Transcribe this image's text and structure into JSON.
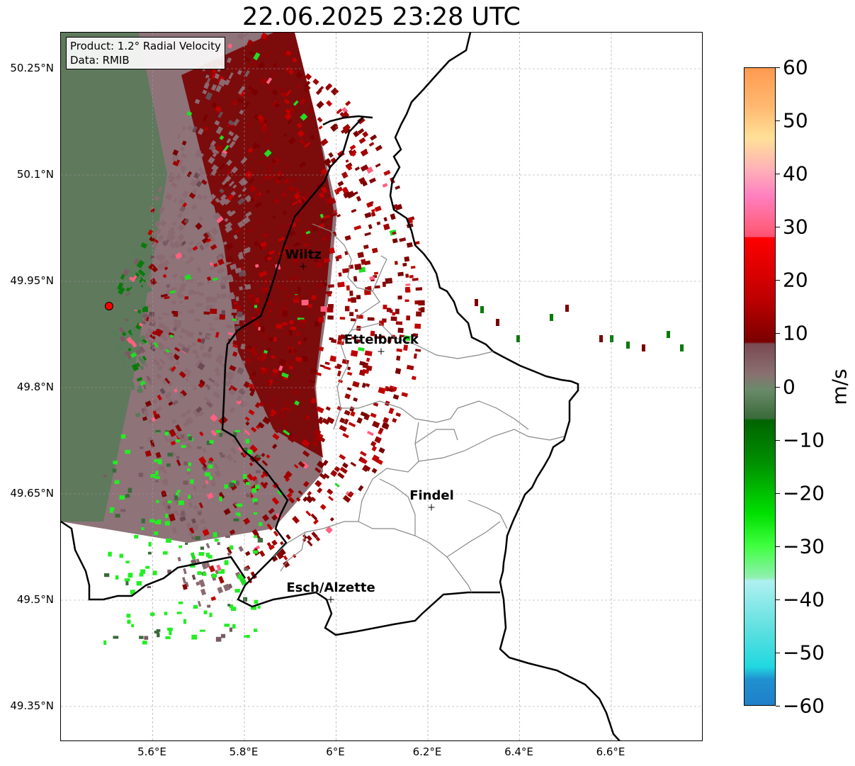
{
  "title": "22.06.2025 23:28 UTC",
  "info": {
    "product": "Product: 1.2° Radial Velocity",
    "data": "Data: RMIB"
  },
  "map": {
    "lon_range": [
      5.4,
      6.8
    ],
    "lat_range": [
      49.3,
      50.3
    ],
    "lat_ticks": [
      {
        "value": 50.25,
        "label": "50.25°N"
      },
      {
        "value": 50.1,
        "label": "50.1°N"
      },
      {
        "value": 49.95,
        "label": "49.95°N"
      },
      {
        "value": 49.8,
        "label": "49.8°N"
      },
      {
        "value": 49.65,
        "label": "49.65°N"
      },
      {
        "value": 49.5,
        "label": "49.5°N"
      },
      {
        "value": 49.35,
        "label": "49.35°N"
      }
    ],
    "lon_ticks": [
      {
        "value": 5.6,
        "label": "5.6°E"
      },
      {
        "value": 5.8,
        "label": "5.8°E"
      },
      {
        "value": 6.0,
        "label": "6°E"
      },
      {
        "value": 6.2,
        "label": "6.2°E"
      },
      {
        "value": 6.4,
        "label": "6.4°E"
      },
      {
        "value": 6.6,
        "label": "6.6°E"
      }
    ],
    "radar_site": {
      "lon": 5.505,
      "lat": 49.915
    },
    "cities": [
      {
        "name": "Wiltz",
        "lon": 5.93,
        "lat": 49.97
      },
      {
        "name": "Ettelbruck",
        "lon": 6.1,
        "lat": 49.85
      },
      {
        "name": "Findel",
        "lon": 6.21,
        "lat": 49.63
      },
      {
        "name": "Esch/Alzette",
        "lon": 5.99,
        "lat": 49.5
      }
    ]
  },
  "colorbar": {
    "unit": "m/s",
    "min": -60,
    "max": 60,
    "ticks": [
      {
        "value": 60,
        "label": "60"
      },
      {
        "value": 50,
        "label": "50"
      },
      {
        "value": 40,
        "label": "40"
      },
      {
        "value": 30,
        "label": "30"
      },
      {
        "value": 20,
        "label": "20"
      },
      {
        "value": 10,
        "label": "10"
      },
      {
        "value": 0,
        "label": "0"
      },
      {
        "value": -10,
        "label": "−10"
      },
      {
        "value": -20,
        "label": "−20"
      },
      {
        "value": -30,
        "label": "−30"
      },
      {
        "value": -40,
        "label": "−40"
      },
      {
        "value": -50,
        "label": "−50"
      },
      {
        "value": -60,
        "label": "−60"
      }
    ]
  }
}
